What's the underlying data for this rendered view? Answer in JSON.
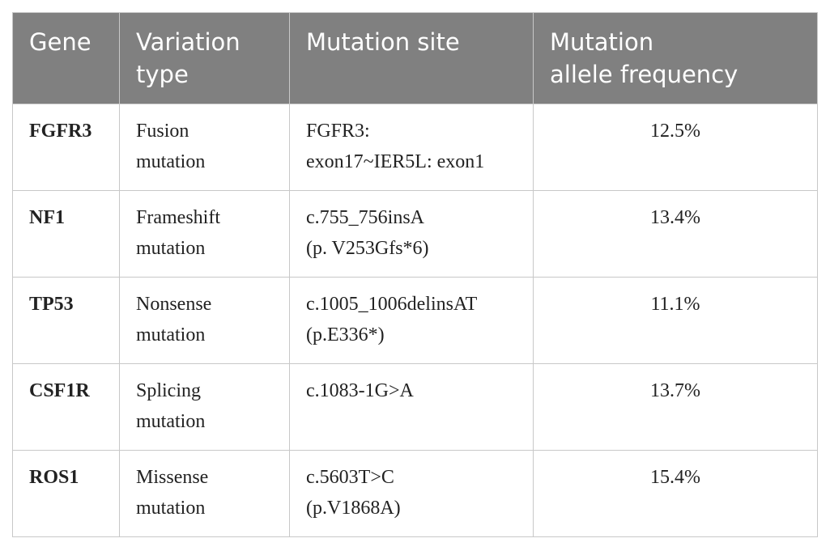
{
  "table": {
    "header": [
      [
        "Gene"
      ],
      [
        "Variation",
        "type"
      ],
      [
        "Mutation site"
      ],
      [
        "Mutation",
        "allele frequency"
      ]
    ],
    "rows": [
      [
        [
          "FGFR3"
        ],
        [
          "Fusion",
          "mutation"
        ],
        [
          "FGFR3:",
          "exon17~IER5L: exon1"
        ],
        [
          "12.5%"
        ]
      ],
      [
        [
          "NF1"
        ],
        [
          "Frameshift",
          "mutation"
        ],
        [
          "c.755_756insA",
          "(p. V253Gfs*6)"
        ],
        [
          "13.4%"
        ]
      ],
      [
        [
          "TP53"
        ],
        [
          "Nonsense",
          "mutation"
        ],
        [
          "c.1005_1006delinsAT",
          "(p.E336*)"
        ],
        [
          "11.1%"
        ]
      ],
      [
        [
          "CSF1R"
        ],
        [
          "Splicing",
          "mutation"
        ],
        [
          "c.1083-1G>A"
        ],
        [
          "13.7%"
        ]
      ],
      [
        [
          "ROS1"
        ],
        [
          "Missense",
          "mutation"
        ],
        [
          "c.5603T>C",
          "(p.V1868A)"
        ],
        [
          "15.4%"
        ]
      ]
    ]
  }
}
